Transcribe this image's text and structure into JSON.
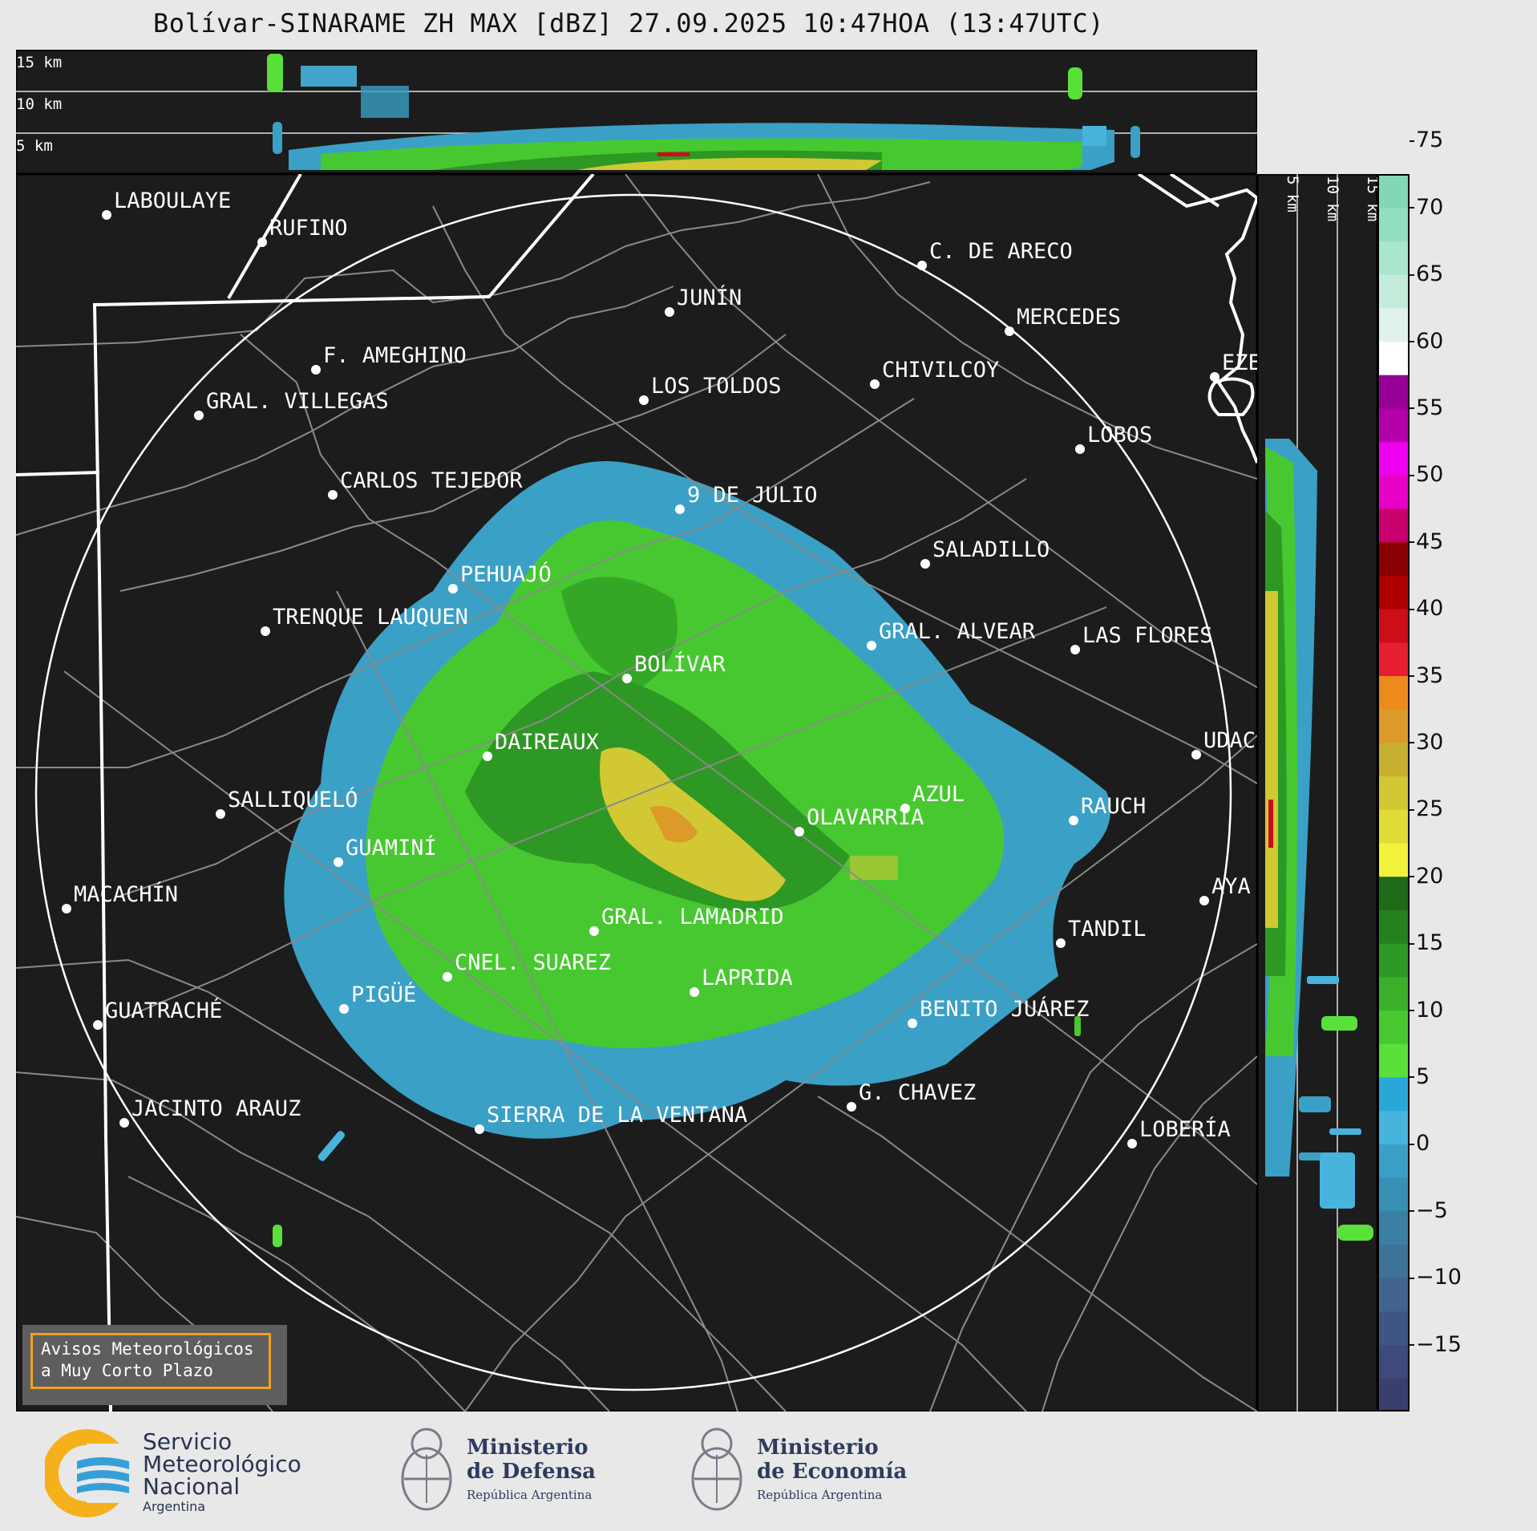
{
  "title": "Bolívar-SINARAME ZH MAX [dBZ] 27.09.2025 10:47HOA (13:47UTC)",
  "height_labels": [
    "15 km",
    "10 km",
    "5 km"
  ],
  "cities": [
    {
      "name": "LABOULAYE"
    },
    {
      "name": "RUFINO"
    },
    {
      "name": "C. DE ARECO"
    },
    {
      "name": "JUNÍN"
    },
    {
      "name": "MERCEDES"
    },
    {
      "name": "F. AMEGHINO"
    },
    {
      "name": "CHIVILCOY"
    },
    {
      "name": "EZE"
    },
    {
      "name": "GRAL. VILLEGAS"
    },
    {
      "name": "LOS TOLDOS"
    },
    {
      "name": "LOBOS"
    },
    {
      "name": "CARLOS TEJEDOR"
    },
    {
      "name": "9 DE JULIO"
    },
    {
      "name": "SALADILLO"
    },
    {
      "name": "PEHUAJÓ"
    },
    {
      "name": "TRENQUE LAUQUEN"
    },
    {
      "name": "GRAL. ALVEAR"
    },
    {
      "name": "LAS FLORES"
    },
    {
      "name": "BOLÍVAR"
    },
    {
      "name": "DAIREAUX"
    },
    {
      "name": "UDAC"
    },
    {
      "name": "SALLIQUELÓ"
    },
    {
      "name": "AZUL"
    },
    {
      "name": "RAUCH"
    },
    {
      "name": "OLAVARRÍA"
    },
    {
      "name": "GUAMINÍ"
    },
    {
      "name": "MACACHÍN"
    },
    {
      "name": "AYA"
    },
    {
      "name": "GRAL. LAMADRID"
    },
    {
      "name": "TANDIL"
    },
    {
      "name": "CNEL. SUAREZ"
    },
    {
      "name": "LAPRIDA"
    },
    {
      "name": "PIGÜÉ"
    },
    {
      "name": "GUATRACHÉ"
    },
    {
      "name": "BENITO JUÁREZ"
    },
    {
      "name": "G. CHAVEZ"
    },
    {
      "name": "JACINTO ARAUZ"
    },
    {
      "name": "SIERRA DE LA VENTANA"
    },
    {
      "name": "LOBERÍA"
    }
  ],
  "colorbar": {
    "unit": "dBZ",
    "ticks": [
      "75",
      "70",
      "65",
      "60",
      "55",
      "50",
      "45",
      "40",
      "35",
      "30",
      "25",
      "20",
      "15",
      "10",
      "5",
      "0",
      "−5",
      "−10",
      "−15"
    ],
    "colors": [
      "#3b3f6e",
      "#3d4a7a",
      "#3f5684",
      "#41648e",
      "#3f7298",
      "#3b80a2",
      "#3690b4",
      "#3aa0c6",
      "#46b4dc",
      "#28a8d8",
      "#5ae03a",
      "#48c830",
      "#3ab02a",
      "#2e9824",
      "#25801e",
      "#1d6a18",
      "#f2f23c",
      "#e2dc38",
      "#d2c834",
      "#c8b030",
      "#dc9a28",
      "#ec8a1c",
      "#e61e32",
      "#cc0e18",
      "#ae0000",
      "#8a0000",
      "#c8006e",
      "#e600c8",
      "#f000f0",
      "#b400a8",
      "#960096",
      "#ffffff",
      "#e0f2ea",
      "#c4ecdc",
      "#aae6cc",
      "#94dec0",
      "#82d8b4"
    ]
  },
  "warning_box": {
    "line1": "Avisos Meteorológicos",
    "line2": "a Muy Corto Plazo"
  },
  "logos": {
    "smn": {
      "line1": "Servicio",
      "line2": "Meteorológico",
      "line3": "Nacional",
      "line4": "Argentina"
    },
    "defensa": {
      "line1": "Ministerio",
      "line2": "de Defensa",
      "line3": "República Argentina"
    },
    "economia": {
      "line1": "Ministerio",
      "line2": "de Economía",
      "line3": "República Argentina"
    }
  }
}
